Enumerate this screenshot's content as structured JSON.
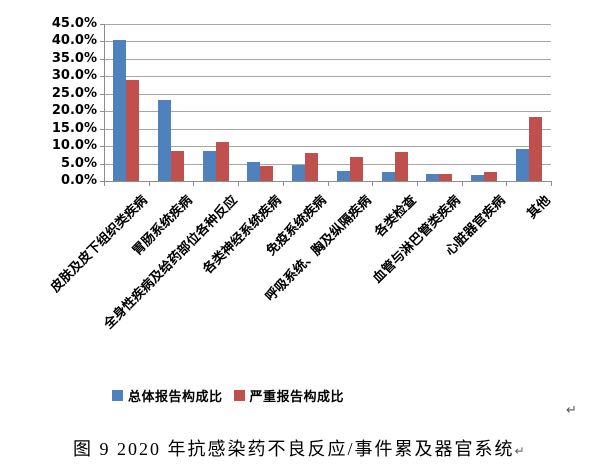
{
  "chart_data": {
    "type": "bar",
    "title": "",
    "xlabel": "",
    "ylabel": "",
    "categories": [
      "皮肤及皮下组织类疾病",
      "胃肠系统疾病",
      "全身性疾病及给药部位各种反应",
      "各类神经系统疾病",
      "免疫系统疾病",
      "呼吸系统、胸及纵隔疾病",
      "各类检查",
      "血管与淋巴管类疾病",
      "心脏器官疾病",
      "其他"
    ],
    "series": [
      {
        "name": "总体报告构成比",
        "color": "#4F81BD",
        "values": [
          40.3,
          23.2,
          8.5,
          5.5,
          4.5,
          2.9,
          2.5,
          2.1,
          1.8,
          9.2
        ]
      },
      {
        "name": "严重报告构成比",
        "color": "#C0504D",
        "values": [
          28.9,
          8.5,
          11.2,
          4.3,
          7.9,
          7.0,
          8.4,
          2.1,
          2.7,
          18.3
        ]
      }
    ],
    "ylim": [
      0,
      45
    ],
    "ytick_step": 5,
    "ytick_format": "one-decimal-percent",
    "grid": true,
    "gridline_color": "#a6a6a6",
    "axis_color": "#8c8c8c",
    "legend_position": "bottom"
  },
  "caption": {
    "text": "图 9  2020 年抗感染药不良反应/事件累及器官系统",
    "return_mark": "↵"
  },
  "paragraph_mark": "↵"
}
